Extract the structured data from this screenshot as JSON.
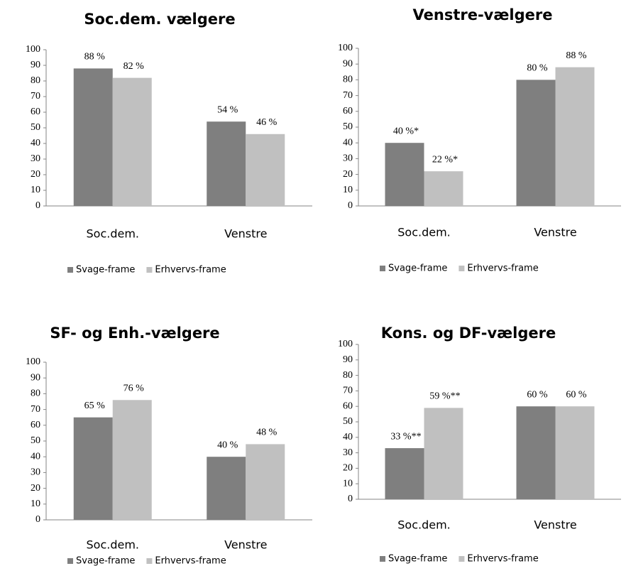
{
  "chart_data": [
    {
      "type": "bar",
      "title": "Soc.dem. vælgere",
      "categories": [
        "Soc.dem.",
        "Venstre"
      ],
      "series": [
        {
          "name": "Svage-frame",
          "color": "#7f7f7f",
          "values": [
            88,
            54
          ],
          "value_labels": [
            "88 %",
            "54 %"
          ]
        },
        {
          "name": "Erhvervs-frame",
          "color": "#c0c0c0",
          "values": [
            82,
            46
          ],
          "value_labels": [
            "82 %",
            "46 %"
          ]
        }
      ],
      "ylim": [
        0,
        100
      ],
      "yticks": [
        0,
        10,
        20,
        30,
        40,
        50,
        60,
        70,
        80,
        90,
        100
      ],
      "legend": "bottom"
    },
    {
      "type": "bar",
      "title": "Venstre-vælgere",
      "categories": [
        "Soc.dem.",
        "Venstre"
      ],
      "series": [
        {
          "name": "Svage-frame",
          "color": "#7f7f7f",
          "values": [
            40,
            80
          ],
          "value_labels": [
            "40 %*",
            "80 %"
          ]
        },
        {
          "name": "Erhvervs-frame",
          "color": "#c0c0c0",
          "values": [
            22,
            88
          ],
          "value_labels": [
            "22 %*",
            "88 %"
          ]
        }
      ],
      "ylim": [
        0,
        100
      ],
      "yticks": [
        0,
        10,
        20,
        30,
        40,
        50,
        60,
        70,
        80,
        90,
        100
      ],
      "legend": "bottom"
    },
    {
      "type": "bar",
      "title": "SF- og Enh.-vælgere",
      "categories": [
        "Soc.dem.",
        "Venstre"
      ],
      "series": [
        {
          "name": "Svage-frame",
          "color": "#7f7f7f",
          "values": [
            65,
            40
          ],
          "value_labels": [
            "65 %",
            "40 %"
          ]
        },
        {
          "name": "Erhvervs-frame",
          "color": "#c0c0c0",
          "values": [
            76,
            48
          ],
          "value_labels": [
            "76 %",
            "48 %"
          ]
        }
      ],
      "ylim": [
        0,
        100
      ],
      "yticks": [
        0,
        10,
        20,
        30,
        40,
        50,
        60,
        70,
        80,
        90,
        100
      ],
      "legend": "bottom"
    },
    {
      "type": "bar",
      "title": "Kons. og DF-vælgere",
      "categories": [
        "Soc.dem.",
        "Venstre"
      ],
      "series": [
        {
          "name": "Svage-frame",
          "color": "#7f7f7f",
          "values": [
            33,
            60
          ],
          "value_labels": [
            "33 %**",
            "60 %"
          ]
        },
        {
          "name": "Erhvervs-frame",
          "color": "#c0c0c0",
          "values": [
            59,
            60
          ],
          "value_labels": [
            "59 %**",
            "60 %"
          ]
        }
      ],
      "ylim": [
        0,
        100
      ],
      "yticks": [
        0,
        10,
        20,
        30,
        40,
        50,
        60,
        70,
        80,
        90,
        100
      ],
      "legend": "bottom"
    }
  ]
}
